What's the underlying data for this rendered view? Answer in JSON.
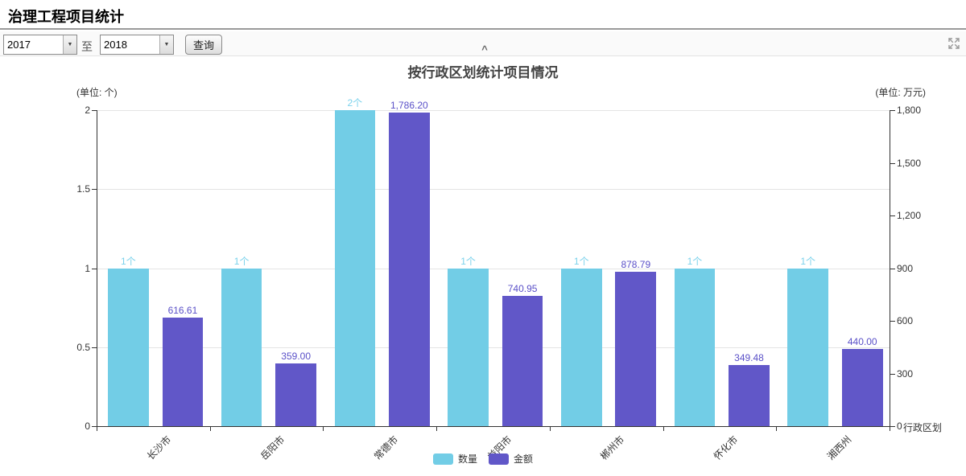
{
  "page": {
    "title": "治理工程项目统计"
  },
  "toolbar": {
    "year_from": "2017",
    "to_label": "至",
    "year_to": "2018",
    "query_label": "查询",
    "collapse_glyph": "^",
    "dropdown_arrow_glyph": "▼"
  },
  "icons": {
    "fullscreen": "expand-arrows-icon",
    "collapse": "chevron-up-icon",
    "dropdown": "caret-down-icon"
  },
  "chart": {
    "title": "按行政区划统计项目情况",
    "left_unit": "(单位: 个)",
    "right_unit": "(单位: 万元)",
    "x_axis_name": "行政区划",
    "colors": {
      "count_bar": "#72CDE6",
      "amount_bar": "#6157C8",
      "count_label": "#7BD2EC",
      "amount_label": "#5A50C8",
      "axis": "#333333",
      "grid": "#e4e4e4"
    },
    "legend": [
      {
        "label": "数量",
        "color": "#72CDE6"
      },
      {
        "label": "金额",
        "color": "#6157C8"
      }
    ]
  },
  "chart_data": {
    "type": "bar",
    "title": "按行政区划统计项目情况",
    "categories": [
      "长沙市",
      "岳阳市",
      "常德市",
      "益阳市",
      "郴州市",
      "怀化市",
      "湘西州"
    ],
    "series": [
      {
        "name": "数量",
        "axis": "left",
        "color": "#72CDE6",
        "label_color": "#7BD2EC",
        "values": [
          1,
          1,
          2,
          1,
          1,
          1,
          1
        ],
        "labels": [
          "1个",
          "1个",
          "2个",
          "1个",
          "1个",
          "1个",
          "1个"
        ]
      },
      {
        "name": "金额",
        "axis": "right",
        "color": "#6157C8",
        "label_color": "#5A50C8",
        "values": [
          616.61,
          359.0,
          1786.2,
          740.95,
          878.79,
          349.48,
          440.0
        ],
        "labels": [
          "616.61",
          "359.00",
          "1,786.20",
          "740.95",
          "878.79",
          "349.48",
          "440.00"
        ]
      }
    ],
    "left_axis": {
      "max": 2,
      "ticks": [
        0,
        0.5,
        1,
        1.5,
        2
      ],
      "tick_labels": [
        "0",
        "0.5",
        "1",
        "1.5",
        "2"
      ]
    },
    "right_axis": {
      "max": 1800,
      "ticks": [
        0,
        300,
        600,
        900,
        1200,
        1500,
        1800
      ],
      "tick_labels": [
        "0",
        "300",
        "600",
        "900",
        "1,200",
        "1,500",
        "1,800"
      ]
    },
    "x_axis_name": "行政区划",
    "legend_position": "bottom-center",
    "grid": true
  }
}
